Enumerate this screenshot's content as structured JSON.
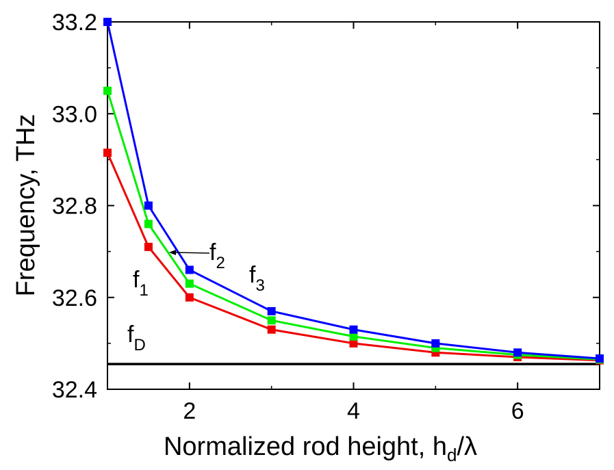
{
  "chart_data": {
    "type": "line",
    "xlabel": "Normalized rod height, h",
    "xlabel_sub": "d",
    "xlabel_tail": "/λ",
    "ylabel": "Frequency, THz",
    "xlim": [
      1,
      7
    ],
    "ylim": [
      32.4,
      33.2
    ],
    "x_ticks": [
      2,
      4,
      6
    ],
    "y_ticks": [
      32.4,
      32.6,
      32.8,
      33.0,
      33.2
    ],
    "y_tick_labels": [
      "32.4",
      "32.6",
      "32.8",
      "33.0",
      "33.2"
    ],
    "x_tick_labels": [
      "2",
      "4",
      "6"
    ],
    "grid": false,
    "x": [
      1,
      1.5,
      2,
      3,
      4,
      5,
      6,
      7
    ],
    "series": [
      {
        "color": "#0000ff",
        "values": [
          33.2,
          32.8,
          32.66,
          32.57,
          32.53,
          32.5,
          32.48,
          32.467
        ]
      },
      {
        "color": "#00ee00",
        "values": [
          33.05,
          32.76,
          32.63,
          32.55,
          32.515,
          32.49,
          32.475,
          32.465
        ]
      },
      {
        "color": "#ee0000",
        "values": [
          32.915,
          32.71,
          32.6,
          32.53,
          32.5,
          32.48,
          32.47,
          32.463
        ]
      }
    ],
    "reference_line": {
      "y": 32.455,
      "color": "#000000"
    },
    "annotations": [
      {
        "text": "f",
        "sub": "1"
      },
      {
        "text": "f",
        "sub": "2"
      },
      {
        "text": "f",
        "sub": "3"
      },
      {
        "text": "f",
        "sub": "D"
      }
    ]
  }
}
